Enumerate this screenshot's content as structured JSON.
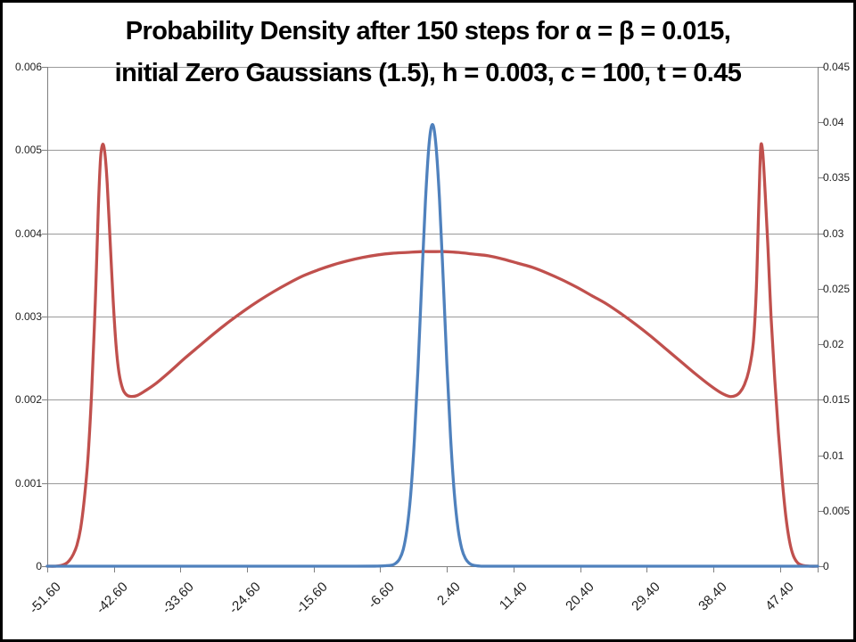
{
  "title": {
    "line1": "Probability Density after 150 steps for α = β = 0.015,",
    "line2": "initial Zero Gaussians (1.5), h = 0.003, c = 100, t = 0.45"
  },
  "colors": {
    "series_red": "#C0504D",
    "series_blue": "#4F81BD",
    "gridline": "#9a9a9a",
    "axis": "#808080",
    "tick_text": "#1f1f1f",
    "title_text": "#000000",
    "background": "#ffffff",
    "frame_border": "#000000"
  },
  "chart_data": {
    "type": "line",
    "title": "Probability Density after 150 steps for α = β = 0.015, initial Zero Gaussians (1.5), h = 0.003, c = 100, t = 0.45",
    "grid": true,
    "legend": false,
    "x_axis": {
      "range": [
        -51.6,
        52.5
      ],
      "ticks": [
        {
          "v": -51.6,
          "label": "-51.60"
        },
        {
          "v": -42.6,
          "label": "-42.60"
        },
        {
          "v": -33.6,
          "label": "-33.60"
        },
        {
          "v": -24.6,
          "label": "-24.60"
        },
        {
          "v": -15.6,
          "label": "-15.60"
        },
        {
          "v": -6.6,
          "label": "-6.60"
        },
        {
          "v": 2.4,
          "label": "2.40"
        },
        {
          "v": 11.4,
          "label": "11.40"
        },
        {
          "v": 20.4,
          "label": "20.40"
        },
        {
          "v": 29.4,
          "label": "29.40"
        },
        {
          "v": 38.4,
          "label": "38.40"
        },
        {
          "v": 47.4,
          "label": "47.40"
        }
      ]
    },
    "y_axis_left": {
      "range": [
        0,
        0.006
      ],
      "ticks": [
        {
          "v": 0,
          "label": "0"
        },
        {
          "v": 0.001,
          "label": "0.001"
        },
        {
          "v": 0.002,
          "label": "0.002"
        },
        {
          "v": 0.003,
          "label": "0.003"
        },
        {
          "v": 0.004,
          "label": "0.004"
        },
        {
          "v": 0.005,
          "label": "0.005"
        },
        {
          "v": 0.006,
          "label": "0.006"
        }
      ]
    },
    "y_axis_right": {
      "range": [
        0,
        0.045
      ],
      "ticks": [
        {
          "v": 0,
          "label": "0"
        },
        {
          "v": 0.005,
          "label": "0.005"
        },
        {
          "v": 0.01,
          "label": "0.01"
        },
        {
          "v": 0.015,
          "label": "0.015"
        },
        {
          "v": 0.02,
          "label": "0.02"
        },
        {
          "v": 0.025,
          "label": "0.025"
        },
        {
          "v": 0.03,
          "label": "0.03"
        },
        {
          "v": 0.035,
          "label": "0.035"
        },
        {
          "v": 0.04,
          "label": "0.04"
        },
        {
          "v": 0.045,
          "label": "0.045"
        }
      ]
    },
    "series": [
      {
        "name": "bimodal-density-red",
        "axis": "left",
        "color": "#C0504D",
        "stroke_width": 3.3,
        "points": [
          [
            -51.6,
            0
          ],
          [
            -50.5,
            0
          ],
          [
            -49.7,
            1e-05
          ],
          [
            -49.1,
            3e-05
          ],
          [
            -48.6,
            7e-05
          ],
          [
            -48.1,
            0.00014
          ],
          [
            -47.6,
            0.00025
          ],
          [
            -47.1,
            0.00045
          ],
          [
            -46.6,
            0.0008
          ],
          [
            -46.1,
            0.0013
          ],
          [
            -45.6,
            0.0021
          ],
          [
            -45.1,
            0.0032
          ],
          [
            -44.7,
            0.0043
          ],
          [
            -44.4,
            0.0049
          ],
          [
            -44.1,
            0.00507
          ],
          [
            -43.8,
            0.00495
          ],
          [
            -43.5,
            0.0046
          ],
          [
            -43.1,
            0.0039
          ],
          [
            -42.7,
            0.0032
          ],
          [
            -42.3,
            0.00265
          ],
          [
            -41.9,
            0.00232
          ],
          [
            -41.4,
            0.00213
          ],
          [
            -40.9,
            0.00206
          ],
          [
            -40.3,
            0.00204
          ],
          [
            -39.5,
            0.00205
          ],
          [
            -38.5,
            0.0021
          ],
          [
            -37,
            0.00219
          ],
          [
            -35,
            0.00234
          ],
          [
            -33,
            0.0025
          ],
          [
            -31,
            0.00265
          ],
          [
            -29,
            0.0028
          ],
          [
            -27,
            0.00294
          ],
          [
            -25,
            0.00307
          ],
          [
            -23,
            0.00319
          ],
          [
            -21,
            0.0033
          ],
          [
            -19,
            0.0034
          ],
          [
            -17,
            0.00349
          ],
          [
            -15,
            0.00356
          ],
          [
            -13,
            0.00362
          ],
          [
            -11,
            0.00367
          ],
          [
            -9,
            0.00371
          ],
          [
            -7,
            0.00374
          ],
          [
            -5,
            0.00376
          ],
          [
            -3,
            0.00377
          ],
          [
            -1,
            0.00378
          ],
          [
            0.45,
            0.00378
          ],
          [
            2,
            0.00378
          ],
          [
            4,
            0.00377
          ],
          [
            6,
            0.00375
          ],
          [
            8,
            0.00373
          ],
          [
            10,
            0.00369
          ],
          [
            12,
            0.00364
          ],
          [
            14,
            0.00359
          ],
          [
            16,
            0.00352
          ],
          [
            18,
            0.00344
          ],
          [
            20,
            0.00335
          ],
          [
            22,
            0.00325
          ],
          [
            24,
            0.00315
          ],
          [
            26,
            0.00303
          ],
          [
            28,
            0.0029
          ],
          [
            30,
            0.00276
          ],
          [
            32,
            0.00261
          ],
          [
            34,
            0.00246
          ],
          [
            36,
            0.00231
          ],
          [
            38,
            0.00217
          ],
          [
            39.5,
            0.00208
          ],
          [
            40.6,
            0.00204
          ],
          [
            41.4,
            0.00205
          ],
          [
            42,
            0.00209
          ],
          [
            42.6,
            0.00218
          ],
          [
            43.2,
            0.00235
          ],
          [
            43.8,
            0.00268
          ],
          [
            44.2,
            0.0033
          ],
          [
            44.5,
            0.0042
          ],
          [
            44.7,
            0.0048
          ],
          [
            44.85,
            0.00507
          ],
          [
            45.1,
            0.00495
          ],
          [
            45.4,
            0.0045
          ],
          [
            45.8,
            0.0038
          ],
          [
            46.2,
            0.003
          ],
          [
            46.7,
            0.00225
          ],
          [
            47.2,
            0.0016
          ],
          [
            47.7,
            0.00105
          ],
          [
            48.2,
            0.0006
          ],
          [
            48.7,
            0.0003
          ],
          [
            49.2,
            0.00013
          ],
          [
            49.8,
            4e-05
          ],
          [
            50.5,
            1e-05
          ],
          [
            51.5,
            0
          ],
          [
            52.5,
            0
          ]
        ]
      },
      {
        "name": "narrow-gaussian-blue",
        "axis": "right",
        "color": "#4F81BD",
        "stroke_width": 3.3,
        "points": [
          [
            -51.6,
            0
          ],
          [
            -20,
            0
          ],
          [
            -10,
            0
          ],
          [
            -7,
            1e-05
          ],
          [
            -6,
            4e-05
          ],
          [
            -5,
            0.0001
          ],
          [
            -4.5,
            0.00027
          ],
          [
            -4,
            0.00065
          ],
          [
            -3.5,
            0.0015
          ],
          [
            -3,
            0.0033
          ],
          [
            -2.5,
            0.0064
          ],
          [
            -2,
            0.0113
          ],
          [
            -1.5,
            0.0179
          ],
          [
            -1,
            0.0256
          ],
          [
            -0.5,
            0.0329
          ],
          [
            0,
            0.0381
          ],
          [
            0.45,
            0.0398
          ],
          [
            0.9,
            0.0381
          ],
          [
            1.4,
            0.0331
          ],
          [
            1.9,
            0.0259
          ],
          [
            2.4,
            0.0182
          ],
          [
            2.9,
            0.0116
          ],
          [
            3.4,
            0.0066
          ],
          [
            3.9,
            0.0034
          ],
          [
            4.4,
            0.0016
          ],
          [
            4.9,
            0.0007
          ],
          [
            5.4,
            0.00028
          ],
          [
            5.9,
            0.0001
          ],
          [
            6.9,
            1e-05
          ],
          [
            8,
            0
          ],
          [
            15,
            0
          ],
          [
            52.5,
            0
          ]
        ]
      }
    ]
  }
}
